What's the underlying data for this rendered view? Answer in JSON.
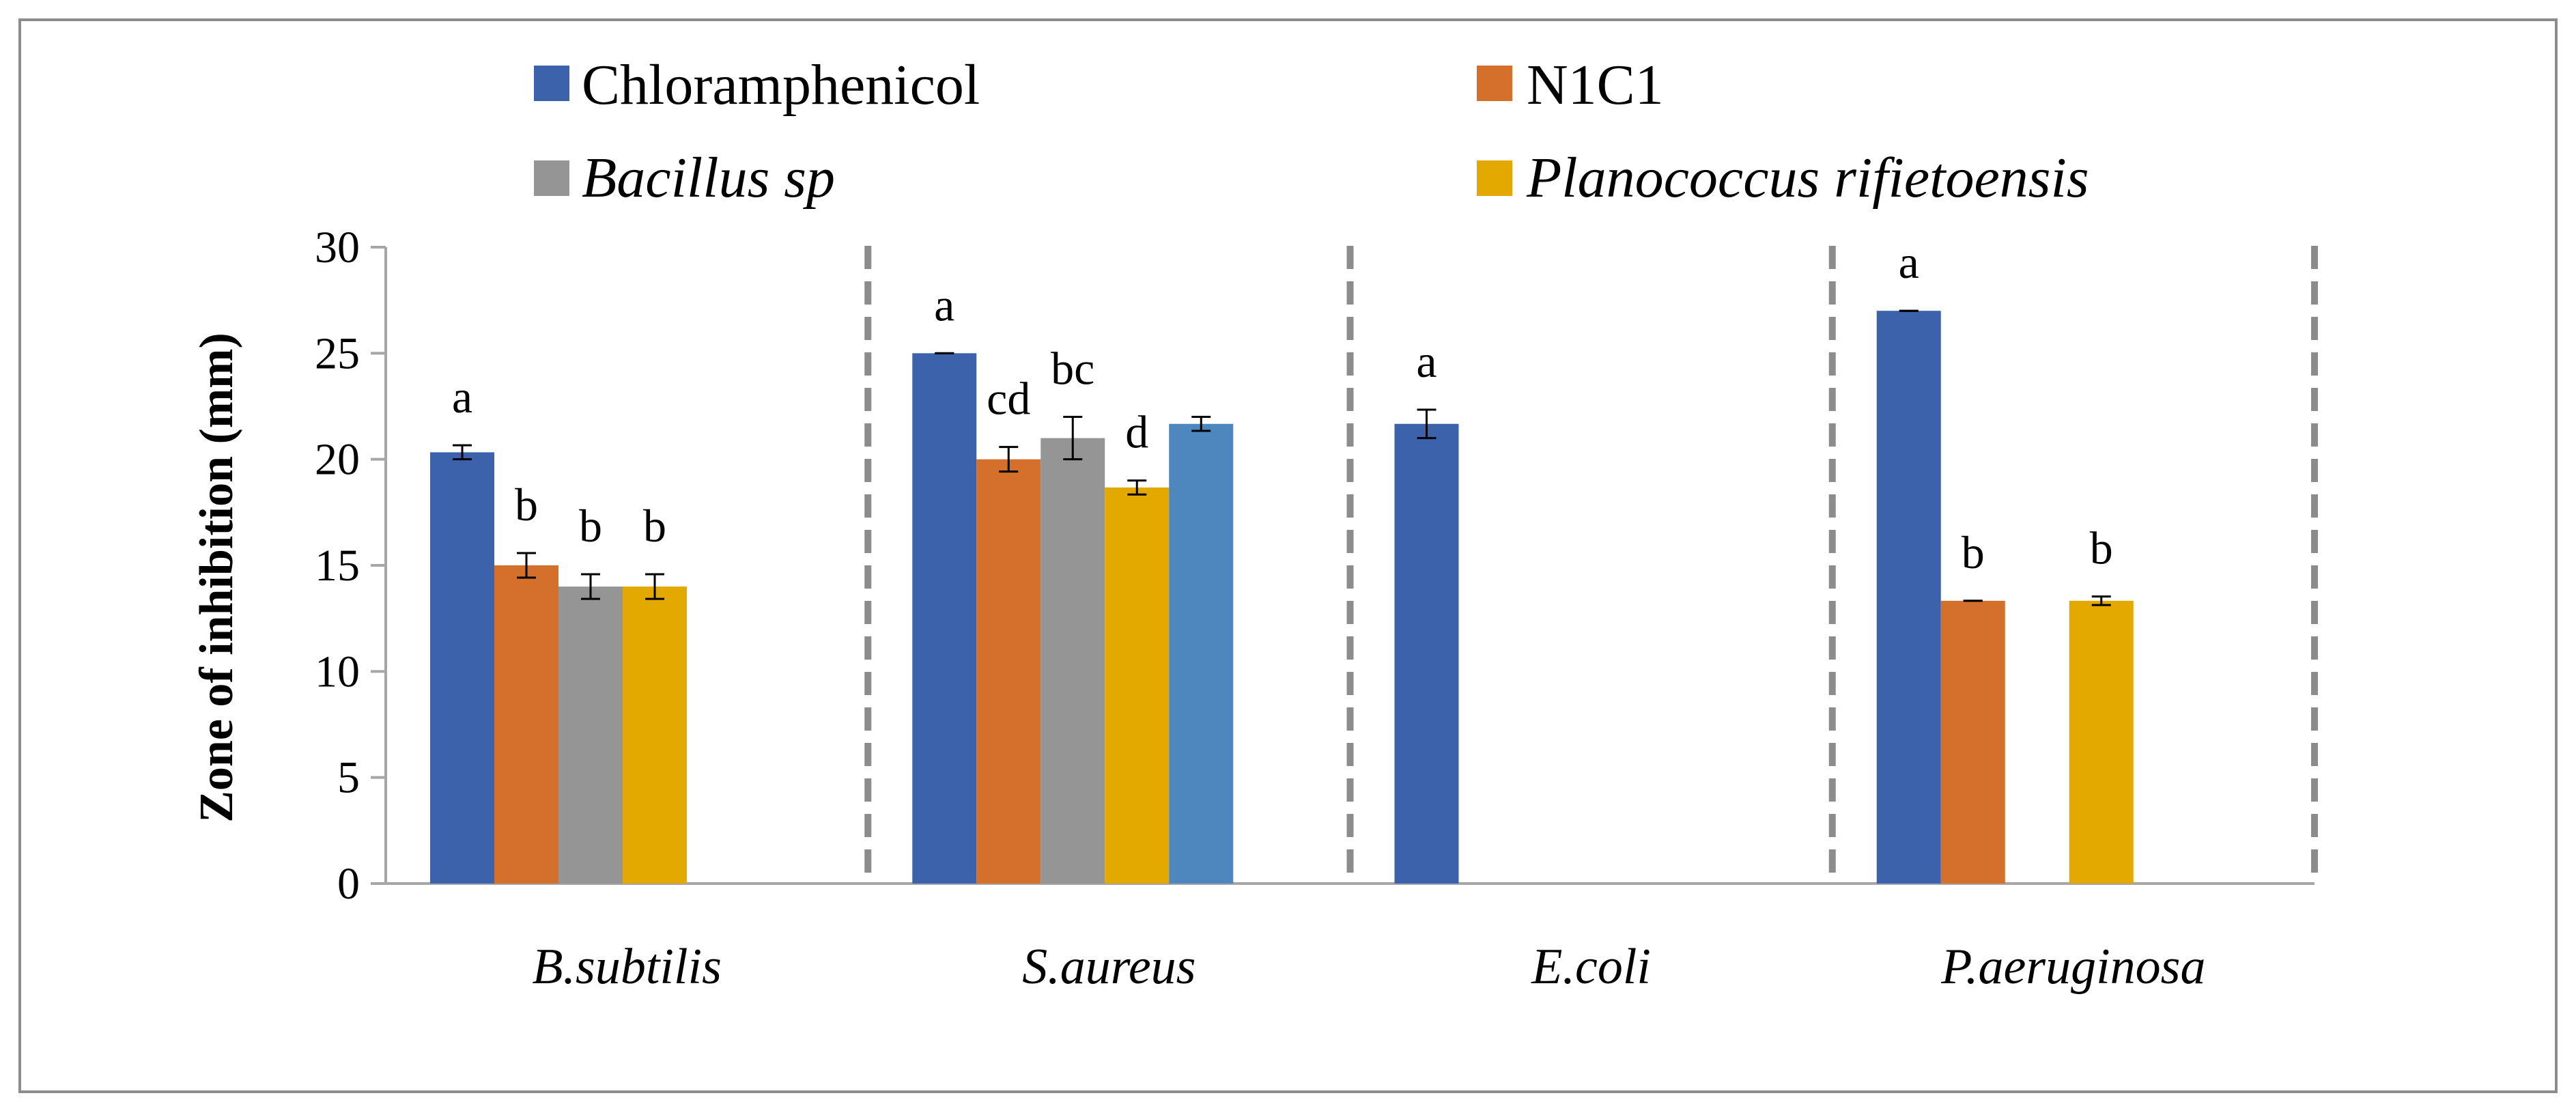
{
  "chart_data": {
    "type": "bar",
    "title": "",
    "xlabel": "",
    "ylabel": "Zone of inhibition (mm)",
    "ylim": [
      0,
      30
    ],
    "yticks": [
      0,
      5,
      10,
      15,
      20,
      25,
      30
    ],
    "grid": false,
    "legend_position": "top",
    "categories": [
      "B.subtilis",
      "S.aureus",
      "E.coli",
      "P.aeruginosa"
    ],
    "series": [
      {
        "name": "Chloramphenicol",
        "italic": false,
        "color": "#3B62AB",
        "values": [
          20.33,
          25.0,
          21.67,
          27.0
        ],
        "errors": [
          0.33,
          0.0,
          0.67,
          0.0
        ],
        "labels": [
          "a",
          "a",
          "a",
          "a"
        ]
      },
      {
        "name": "N1C1",
        "italic": false,
        "color": "#D46F2C",
        "values": [
          15.0,
          20.0,
          null,
          13.33
        ],
        "errors": [
          0.58,
          0.58,
          null,
          0.0
        ],
        "labels": [
          "b",
          "cd",
          "",
          "b"
        ]
      },
      {
        "name": "Bacillus sp",
        "italic": true,
        "color": "#959595",
        "values": [
          14.0,
          21.0,
          null,
          null
        ],
        "errors": [
          0.58,
          1.0,
          null,
          null
        ],
        "labels": [
          "b",
          "bc",
          "",
          ""
        ]
      },
      {
        "name": "Planococcus rifietoensis",
        "italic": true,
        "color": "#E3A900",
        "values": [
          14.0,
          18.67,
          null,
          13.33
        ],
        "errors": [
          0.58,
          0.33,
          null,
          0.2
        ],
        "labels": [
          "b",
          "d",
          "",
          "b"
        ]
      },
      {
        "name": "",
        "italic": false,
        "color": "#4E87BE",
        "in_legend": false,
        "values": [
          null,
          21.67,
          null,
          null
        ],
        "errors": [
          null,
          0.33,
          null,
          null
        ],
        "labels": [
          "",
          "",
          "",
          ""
        ]
      }
    ]
  }
}
